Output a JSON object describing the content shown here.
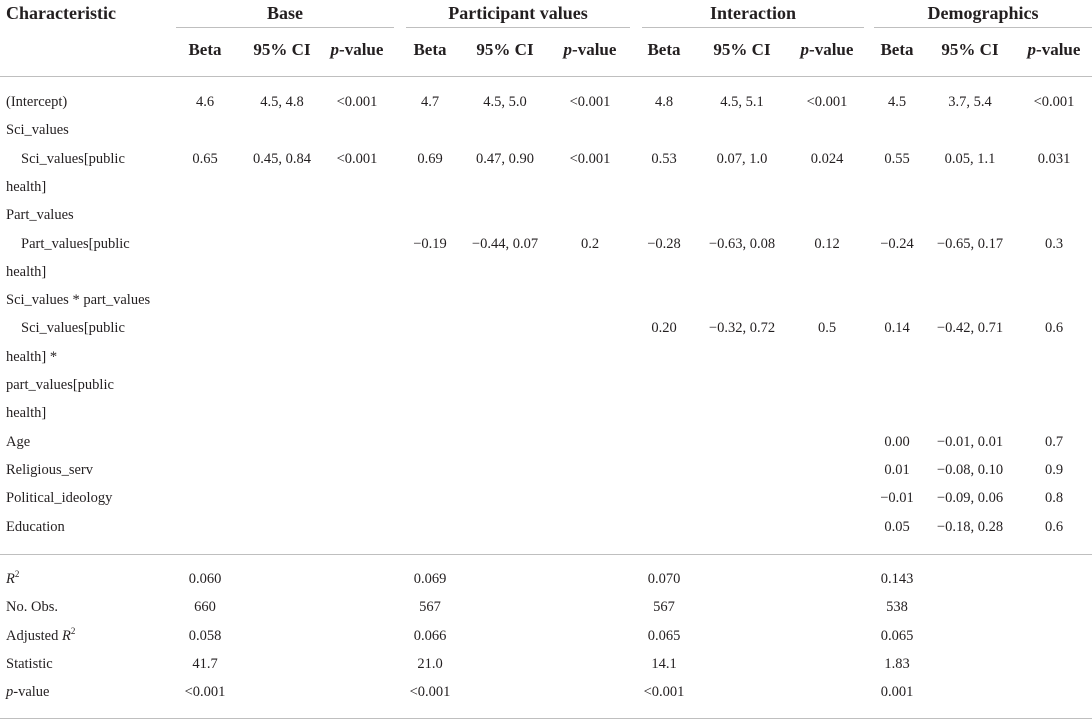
{
  "table": {
    "header": {
      "characteristic": "Characteristic",
      "groups": [
        "Base",
        "Participant values",
        "Interaction",
        "Demographics"
      ],
      "sub": {
        "beta": "Beta",
        "ci": "95% CI",
        "p_italic": "p",
        "p_rest": "-value"
      }
    },
    "rows": [
      {
        "label": "(Intercept)",
        "indent": false,
        "vals": [
          "4.6",
          "4.5, 4.8",
          "<0.001",
          "4.7",
          "4.5, 5.0",
          "<0.001",
          "4.8",
          "4.5, 5.1",
          "<0.001",
          "4.5",
          "3.7, 5.4",
          "<0.001"
        ]
      },
      {
        "label": "Sci_values",
        "indent": false,
        "vals": [
          "",
          "",
          "",
          "",
          "",
          "",
          "",
          "",
          "",
          "",
          "",
          ""
        ]
      },
      {
        "label": "Sci_values[public",
        "indent": true,
        "vals": [
          "0.65",
          "0.45, 0.84",
          "<0.001",
          "0.69",
          "0.47, 0.90",
          "<0.001",
          "0.53",
          "0.07, 1.0",
          "0.024",
          "0.55",
          "0.05, 1.1",
          "0.031"
        ]
      },
      {
        "label": "health]",
        "indent": false,
        "vals": [
          "",
          "",
          "",
          "",
          "",
          "",
          "",
          "",
          "",
          "",
          "",
          ""
        ]
      },
      {
        "label": "Part_values",
        "indent": false,
        "vals": [
          "",
          "",
          "",
          "",
          "",
          "",
          "",
          "",
          "",
          "",
          "",
          ""
        ]
      },
      {
        "label": "Part_values[public",
        "indent": true,
        "vals": [
          "",
          "",
          "",
          "−0.19",
          "−0.44, 0.07",
          "0.2",
          "−0.28",
          "−0.63, 0.08",
          "0.12",
          "−0.24",
          "−0.65, 0.17",
          "0.3"
        ]
      },
      {
        "label": "health]",
        "indent": false,
        "vals": [
          "",
          "",
          "",
          "",
          "",
          "",
          "",
          "",
          "",
          "",
          "",
          ""
        ]
      },
      {
        "label": "Sci_values * part_values",
        "indent": false,
        "vals": [
          "",
          "",
          "",
          "",
          "",
          "",
          "",
          "",
          "",
          "",
          "",
          ""
        ]
      },
      {
        "label": "Sci_values[public",
        "indent": true,
        "vals": [
          "",
          "",
          "",
          "",
          "",
          "",
          "0.20",
          "−0.32, 0.72",
          "0.5",
          "0.14",
          "−0.42, 0.71",
          "0.6"
        ]
      },
      {
        "label": "health] *",
        "indent": false,
        "vals": [
          "",
          "",
          "",
          "",
          "",
          "",
          "",
          "",
          "",
          "",
          "",
          ""
        ]
      },
      {
        "label": "part_values[public",
        "indent": false,
        "vals": [
          "",
          "",
          "",
          "",
          "",
          "",
          "",
          "",
          "",
          "",
          "",
          ""
        ]
      },
      {
        "label": "health]",
        "indent": false,
        "vals": [
          "",
          "",
          "",
          "",
          "",
          "",
          "",
          "",
          "",
          "",
          "",
          ""
        ]
      },
      {
        "label": "Age",
        "indent": false,
        "vals": [
          "",
          "",
          "",
          "",
          "",
          "",
          "",
          "",
          "",
          "0.00",
          "−0.01, 0.01",
          "0.7"
        ]
      },
      {
        "label": "Religious_serv",
        "indent": false,
        "vals": [
          "",
          "",
          "",
          "",
          "",
          "",
          "",
          "",
          "",
          "0.01",
          "−0.08, 0.10",
          "0.9"
        ]
      },
      {
        "label": "Political_ideology",
        "indent": false,
        "vals": [
          "",
          "",
          "",
          "",
          "",
          "",
          "",
          "",
          "",
          "−0.01",
          "−0.09, 0.06",
          "0.8"
        ]
      },
      {
        "label": "Education",
        "indent": false,
        "vals": [
          "",
          "",
          "",
          "",
          "",
          "",
          "",
          "",
          "",
          "0.05",
          "−0.18, 0.28",
          "0.6"
        ]
      }
    ],
    "stats": [
      {
        "label": "R",
        "sup": "2",
        "italic": true,
        "vals": [
          "0.060",
          "0.069",
          "0.070",
          "0.143"
        ]
      },
      {
        "label": "No. Obs.",
        "vals": [
          "660",
          "567",
          "567",
          "538"
        ]
      },
      {
        "label": "Adjusted R",
        "sup": "2",
        "italic_tail": true,
        "vals": [
          "0.058",
          "0.066",
          "0.065",
          "0.065"
        ]
      },
      {
        "label": "Statistic",
        "vals": [
          "41.7",
          "21.0",
          "14.1",
          "1.83"
        ]
      },
      {
        "label": "p",
        "tail": "-value",
        "italic_head": true,
        "vals": [
          "<0.001",
          "<0.001",
          "<0.001",
          "0.001"
        ]
      }
    ]
  }
}
